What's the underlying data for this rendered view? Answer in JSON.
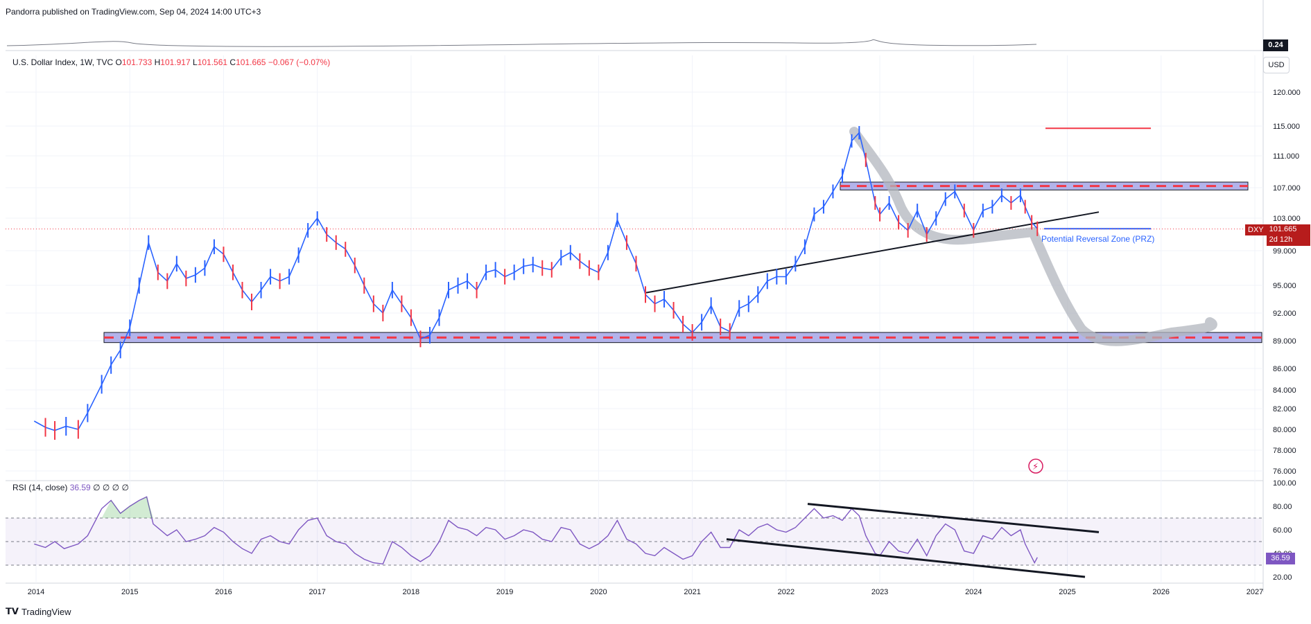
{
  "header": {
    "published": "Pandorra published on TradingView.com, Sep 04, 2024 14:00 UTC+3"
  },
  "legend": {
    "symbol": "U.S. Dollar Index, 1W, TVC",
    "o_label": "O",
    "o": "101.733",
    "h_label": "H",
    "h": "101.917",
    "l_label": "L",
    "l": "101.561",
    "c_label": "C",
    "c": "101.665",
    "change": "−0.067 (−0.07%)"
  },
  "rsi_legend": {
    "label": "RSI (14, close)",
    "value": "36.59",
    "extra": "∅ ∅ ∅ ∅"
  },
  "badges": {
    "volume": "0.24",
    "currency": "USD",
    "symbol": "DXY",
    "last_price": "101.665",
    "countdown": "2d 12h",
    "rsi_last": "36.59"
  },
  "annotation": {
    "prz": "Potential Reversal Zone (PRZ)"
  },
  "footer": {
    "brand": "TradingView"
  },
  "colors": {
    "up": "#2962ff",
    "down": "#f23645",
    "rsi": "#7e57c2",
    "zone_fill": "#b3b3ea",
    "projection": "#b2b5be",
    "grid": "#f0f3fa"
  },
  "chart_data": [
    {
      "type": "line",
      "title": "U.S. Dollar Index, 1W, TVC",
      "y_axis_ticks": [
        "76.000",
        "78.000",
        "80.000",
        "82.000",
        "84.000",
        "86.000",
        "89.000",
        "92.000",
        "95.000",
        "99.000",
        "103.000",
        "107.000",
        "111.000",
        "115.000",
        "120.000"
      ],
      "x_axis_ticks": [
        "2014",
        "2015",
        "2016",
        "2017",
        "2018",
        "2019",
        "2020",
        "2021",
        "2022",
        "2023",
        "2024",
        "2025",
        "2026",
        "2027"
      ],
      "x_tick_years": [
        2014,
        2015,
        2016,
        2017,
        2018,
        2019,
        2020,
        2021,
        2022,
        2023,
        2024,
        2025,
        2026,
        2027
      ],
      "series": [
        {
          "values": [
            [
              2013.98,
              80.8
            ],
            [
              2014.1,
              80.2
            ],
            [
              2014.2,
              79.9
            ],
            [
              2014.32,
              80.3
            ],
            [
              2014.45,
              80.0
            ],
            [
              2014.55,
              81.6
            ],
            [
              2014.7,
              84.5
            ],
            [
              2014.8,
              86.4
            ],
            [
              2014.9,
              88.0
            ],
            [
              2015.0,
              90.4
            ],
            [
              2015.1,
              95.0
            ],
            [
              2015.2,
              100.0
            ],
            [
              2015.3,
              96.5
            ],
            [
              2015.4,
              95.5
            ],
            [
              2015.5,
              97.5
            ],
            [
              2015.6,
              95.8
            ],
            [
              2015.7,
              96.2
            ],
            [
              2015.8,
              97.0
            ],
            [
              2015.9,
              99.5
            ],
            [
              2016.0,
              98.6
            ],
            [
              2016.1,
              96.5
            ],
            [
              2016.2,
              94.5
            ],
            [
              2016.3,
              93.2
            ],
            [
              2016.4,
              94.5
            ],
            [
              2016.5,
              96.0
            ],
            [
              2016.6,
              95.5
            ],
            [
              2016.7,
              96.0
            ],
            [
              2016.8,
              98.5
            ],
            [
              2016.9,
              101.5
            ],
            [
              2017.0,
              103.0
            ],
            [
              2017.1,
              101.0
            ],
            [
              2017.2,
              100.0
            ],
            [
              2017.3,
              99.2
            ],
            [
              2017.4,
              97.3
            ],
            [
              2017.5,
              95.0
            ],
            [
              2017.6,
              93.0
            ],
            [
              2017.7,
              92.0
            ],
            [
              2017.8,
              94.5
            ],
            [
              2017.9,
              93.0
            ],
            [
              2018.0,
              91.5
            ],
            [
              2018.1,
              89.2
            ],
            [
              2018.2,
              89.6
            ],
            [
              2018.3,
              91.5
            ],
            [
              2018.4,
              94.5
            ],
            [
              2018.5,
              95.0
            ],
            [
              2018.6,
              95.5
            ],
            [
              2018.7,
              94.5
            ],
            [
              2018.8,
              96.5
            ],
            [
              2018.9,
              96.8
            ],
            [
              2019.0,
              96.0
            ],
            [
              2019.1,
              96.5
            ],
            [
              2019.2,
              97.2
            ],
            [
              2019.3,
              97.4
            ],
            [
              2019.4,
              97.0
            ],
            [
              2019.5,
              96.8
            ],
            [
              2019.6,
              98.2
            ],
            [
              2019.7,
              98.8
            ],
            [
              2019.8,
              97.8
            ],
            [
              2019.9,
              97.0
            ],
            [
              2020.0,
              96.5
            ],
            [
              2020.1,
              98.8
            ],
            [
              2020.2,
              102.8
            ],
            [
              2020.3,
              100.0
            ],
            [
              2020.4,
              97.5
            ],
            [
              2020.5,
              94.0
            ],
            [
              2020.6,
              93.0
            ],
            [
              2020.7,
              93.5
            ],
            [
              2020.8,
              92.3
            ],
            [
              2020.9,
              90.8
            ],
            [
              2021.0,
              89.9
            ],
            [
              2021.1,
              91.0
            ],
            [
              2021.2,
              92.8
            ],
            [
              2021.3,
              90.5
            ],
            [
              2021.4,
              90.0
            ],
            [
              2021.5,
              92.5
            ],
            [
              2021.6,
              93.0
            ],
            [
              2021.7,
              94.0
            ],
            [
              2021.8,
              95.5
            ],
            [
              2021.9,
              96.0
            ],
            [
              2022.0,
              96.0
            ],
            [
              2022.1,
              97.5
            ],
            [
              2022.2,
              99.5
            ],
            [
              2022.3,
              103.5
            ],
            [
              2022.4,
              104.5
            ],
            [
              2022.5,
              106.5
            ],
            [
              2022.6,
              108.5
            ],
            [
              2022.7,
              113.0
            ],
            [
              2022.78,
              114.1
            ],
            [
              2022.85,
              110.5
            ],
            [
              2022.95,
              105.0
            ],
            [
              2023.0,
              103.5
            ],
            [
              2023.1,
              105.0
            ],
            [
              2023.2,
              102.5
            ],
            [
              2023.3,
              101.5
            ],
            [
              2023.4,
              104.0
            ],
            [
              2023.5,
              101.0
            ],
            [
              2023.6,
              103.0
            ],
            [
              2023.7,
              105.5
            ],
            [
              2023.8,
              106.5
            ],
            [
              2023.9,
              104.0
            ],
            [
              2024.0,
              101.5
            ],
            [
              2024.1,
              104.0
            ],
            [
              2024.2,
              104.5
            ],
            [
              2024.3,
              106.0
            ],
            [
              2024.4,
              105.0
            ],
            [
              2024.5,
              106.0
            ],
            [
              2024.55,
              104.5
            ],
            [
              2024.62,
              102.5
            ],
            [
              2024.68,
              101.7
            ]
          ]
        }
      ]
    },
    {
      "type": "line",
      "title": "RSI (14, close)",
      "y_axis_ticks": [
        "20.00",
        "40.00",
        "60.00",
        "80.00",
        "100.00"
      ],
      "bands": [
        30,
        50,
        70
      ],
      "series": [
        {
          "values": [
            [
              2013.98,
              48
            ],
            [
              2014.1,
              45
            ],
            [
              2014.2,
              50
            ],
            [
              2014.3,
              44
            ],
            [
              2014.45,
              48
            ],
            [
              2014.55,
              55
            ],
            [
              2014.7,
              78
            ],
            [
              2014.8,
              85
            ],
            [
              2014.9,
              74
            ],
            [
              2015.0,
              80
            ],
            [
              2015.1,
              85
            ],
            [
              2015.18,
              88
            ],
            [
              2015.25,
              65
            ],
            [
              2015.4,
              55
            ],
            [
              2015.5,
              60
            ],
            [
              2015.6,
              50
            ],
            [
              2015.7,
              52
            ],
            [
              2015.8,
              55
            ],
            [
              2015.9,
              62
            ],
            [
              2016.0,
              58
            ],
            [
              2016.1,
              50
            ],
            [
              2016.2,
              44
            ],
            [
              2016.3,
              40
            ],
            [
              2016.4,
              52
            ],
            [
              2016.5,
              55
            ],
            [
              2016.6,
              50
            ],
            [
              2016.7,
              48
            ],
            [
              2016.8,
              60
            ],
            [
              2016.9,
              68
            ],
            [
              2017.0,
              70
            ],
            [
              2017.1,
              55
            ],
            [
              2017.2,
              50
            ],
            [
              2017.3,
              48
            ],
            [
              2017.4,
              40
            ],
            [
              2017.5,
              35
            ],
            [
              2017.6,
              32
            ],
            [
              2017.7,
              31
            ],
            [
              2017.8,
              50
            ],
            [
              2017.9,
              45
            ],
            [
              2018.0,
              38
            ],
            [
              2018.1,
              33
            ],
            [
              2018.2,
              38
            ],
            [
              2018.3,
              50
            ],
            [
              2018.4,
              68
            ],
            [
              2018.5,
              62
            ],
            [
              2018.6,
              60
            ],
            [
              2018.7,
              55
            ],
            [
              2018.8,
              62
            ],
            [
              2018.9,
              60
            ],
            [
              2019.0,
              52
            ],
            [
              2019.1,
              55
            ],
            [
              2019.2,
              60
            ],
            [
              2019.3,
              58
            ],
            [
              2019.4,
              52
            ],
            [
              2019.5,
              50
            ],
            [
              2019.6,
              62
            ],
            [
              2019.7,
              60
            ],
            [
              2019.8,
              48
            ],
            [
              2019.9,
              44
            ],
            [
              2020.0,
              48
            ],
            [
              2020.1,
              55
            ],
            [
              2020.2,
              68
            ],
            [
              2020.3,
              52
            ],
            [
              2020.4,
              48
            ],
            [
              2020.5,
              40
            ],
            [
              2020.6,
              38
            ],
            [
              2020.7,
              45
            ],
            [
              2020.8,
              40
            ],
            [
              2020.9,
              35
            ],
            [
              2021.0,
              38
            ],
            [
              2021.1,
              50
            ],
            [
              2021.2,
              58
            ],
            [
              2021.3,
              45
            ],
            [
              2021.4,
              45
            ],
            [
              2021.5,
              60
            ],
            [
              2021.6,
              55
            ],
            [
              2021.7,
              62
            ],
            [
              2021.8,
              65
            ],
            [
              2021.9,
              60
            ],
            [
              2022.0,
              58
            ],
            [
              2022.1,
              62
            ],
            [
              2022.2,
              70
            ],
            [
              2022.3,
              78
            ],
            [
              2022.4,
              70
            ],
            [
              2022.5,
              72
            ],
            [
              2022.6,
              68
            ],
            [
              2022.7,
              78
            ],
            [
              2022.78,
              72
            ],
            [
              2022.85,
              55
            ],
            [
              2022.95,
              40
            ],
            [
              2023.0,
              38
            ],
            [
              2023.1,
              50
            ],
            [
              2023.2,
              42
            ],
            [
              2023.3,
              40
            ],
            [
              2023.4,
              52
            ],
            [
              2023.5,
              38
            ],
            [
              2023.6,
              55
            ],
            [
              2023.7,
              65
            ],
            [
              2023.8,
              60
            ],
            [
              2023.9,
              42
            ],
            [
              2024.0,
              40
            ],
            [
              2024.1,
              55
            ],
            [
              2024.2,
              52
            ],
            [
              2024.3,
              62
            ],
            [
              2024.4,
              55
            ],
            [
              2024.5,
              60
            ],
            [
              2024.55,
              48
            ],
            [
              2024.6,
              40
            ],
            [
              2024.65,
              32
            ],
            [
              2024.68,
              36.59
            ]
          ]
        }
      ]
    }
  ]
}
